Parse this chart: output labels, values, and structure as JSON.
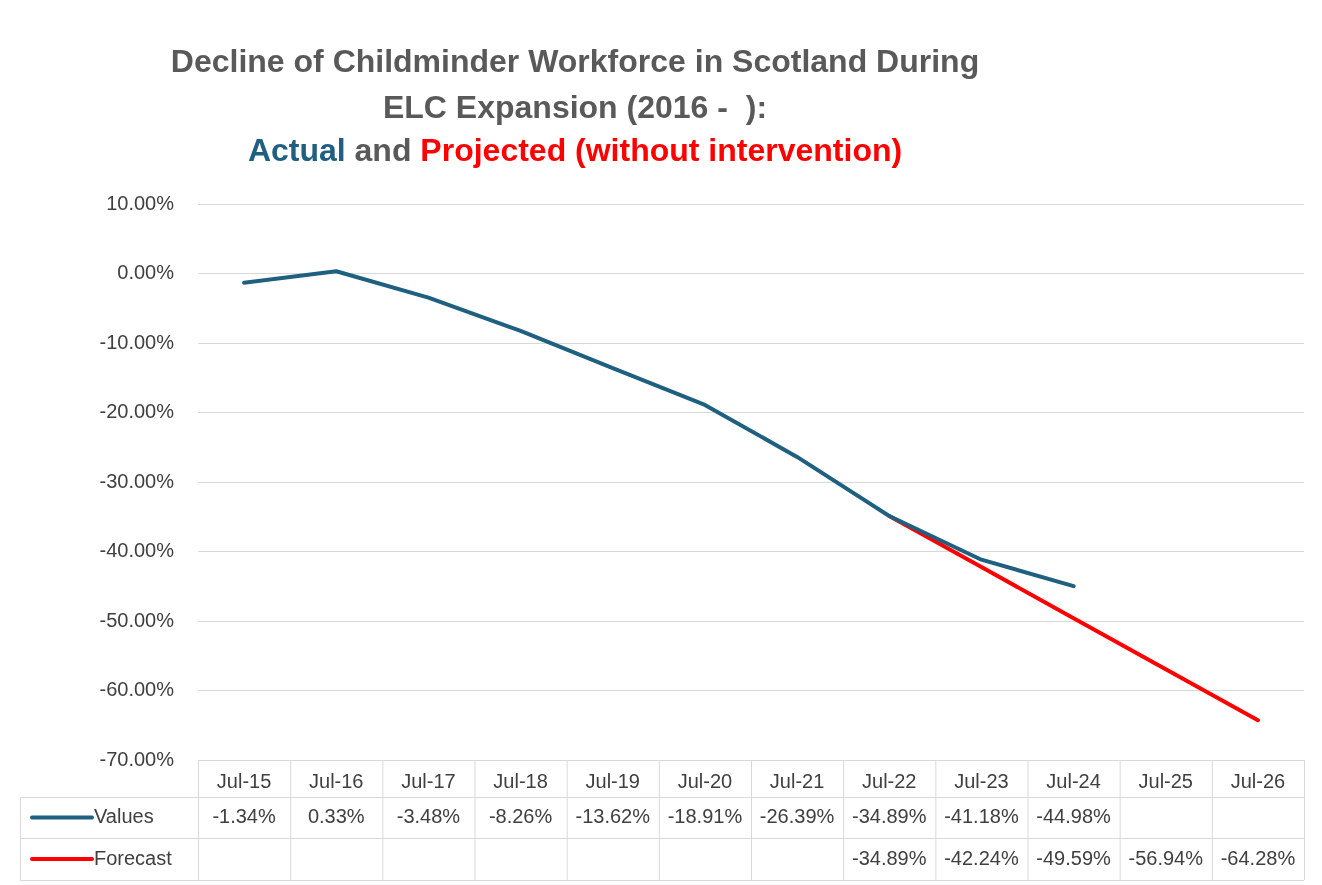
{
  "chart_data": {
    "type": "line",
    "title": "Decline of Childminder Workforce in Scotland During ELC Expansion (2016 -  ):",
    "subtitle": "Actual and Projected (without intervention)",
    "categories": [
      "Jul-15",
      "Jul-16",
      "Jul-17",
      "Jul-18",
      "Jul-19",
      "Jul-20",
      "Jul-21",
      "Jul-22",
      "Jul-23",
      "Jul-24",
      "Jul-25",
      "Jul-26"
    ],
    "series": [
      {
        "name": "Values",
        "color": "#1f5f80",
        "values": [
          -1.34,
          0.33,
          -3.48,
          -8.26,
          -13.62,
          -18.91,
          -26.39,
          -34.89,
          -41.18,
          -44.98,
          null,
          null
        ],
        "value_labels": [
          "-1.34%",
          "0.33%",
          "-3.48%",
          "-8.26%",
          "-13.62%",
          "-18.91%",
          "-26.39%",
          "-34.89%",
          "-41.18%",
          "-44.98%",
          null,
          null
        ]
      },
      {
        "name": "Forecast",
        "color": "#ff0000",
        "values": [
          null,
          null,
          null,
          null,
          null,
          null,
          null,
          -34.89,
          -42.24,
          -49.59,
          -56.94,
          -64.28
        ],
        "value_labels": [
          null,
          null,
          null,
          null,
          null,
          null,
          null,
          "-34.89%",
          "-42.24%",
          "-49.59%",
          "-56.94%",
          "-64.28%"
        ]
      }
    ],
    "ylim": [
      -70,
      10
    ],
    "yticks": [
      {
        "value": 10,
        "label": "10.00%"
      },
      {
        "value": 0,
        "label": "0.00%"
      },
      {
        "value": -10,
        "label": "-10.00%"
      },
      {
        "value": -20,
        "label": "-20.00%"
      },
      {
        "value": -30,
        "label": "-30.00%"
      },
      {
        "value": -40,
        "label": "-40.00%"
      },
      {
        "value": -50,
        "label": "-50.00%"
      },
      {
        "value": -60,
        "label": "-60.00%"
      },
      {
        "value": -70,
        "label": "-70.00%"
      }
    ],
    "grid": "y",
    "legend": "bottom",
    "marker": "none",
    "line_style": "solid"
  }
}
